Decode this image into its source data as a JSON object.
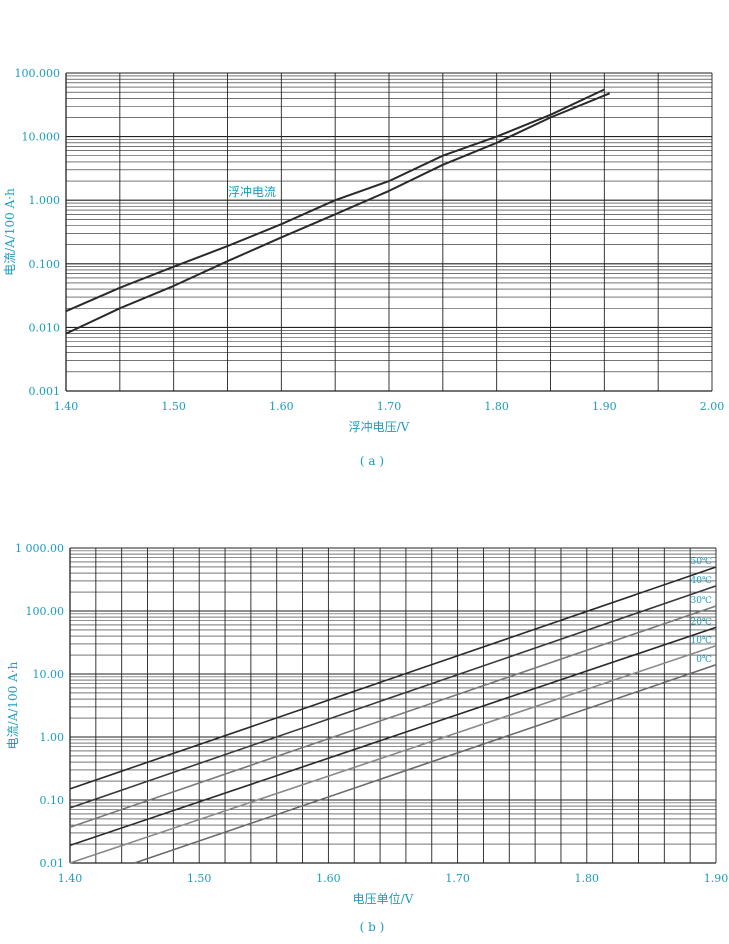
{
  "colors": {
    "text": "#1a9cc0",
    "grid": "#222222",
    "line": "#2b2b2b"
  },
  "chart_data": [
    {
      "type": "line",
      "caption": "( a )",
      "title": "",
      "xlabel": "浮冲电压/V",
      "ylabel": "电流/A/100 A·h",
      "xlim": [
        1.4,
        2.0
      ],
      "ylim": [
        0.001,
        100
      ],
      "yscale": "log",
      "grid": true,
      "xticks": [
        "1.40",
        "1.50",
        "1.60",
        "1.70",
        "1.80",
        "1.90",
        "2.00"
      ],
      "yticks": [
        "0.001",
        "0.010",
        "0.100",
        "1.000",
        "10.000",
        "100.000"
      ],
      "annotation": "浮冲电流",
      "series": [
        {
          "x": [
            1.4,
            1.45,
            1.5,
            1.55,
            1.6,
            1.65,
            1.7,
            1.75,
            1.8,
            1.85,
            1.9
          ],
          "y": [
            0.018,
            0.042,
            0.09,
            0.19,
            0.42,
            1.0,
            2.0,
            5.0,
            10.0,
            22.0,
            55.0
          ]
        },
        {
          "x": [
            1.4,
            1.45,
            1.5,
            1.55,
            1.6,
            1.65,
            1.7,
            1.75,
            1.8,
            1.85,
            1.905
          ],
          "y": [
            0.008,
            0.02,
            0.045,
            0.11,
            0.26,
            0.6,
            1.4,
            3.6,
            8.0,
            20.0,
            48.0
          ]
        }
      ]
    },
    {
      "type": "line",
      "caption": "( b )",
      "title": "",
      "xlabel": "电压单位/V",
      "ylabel": "电流/A/100 A·h",
      "xlim": [
        1.4,
        1.9
      ],
      "ylim": [
        0.01,
        1000
      ],
      "yscale": "log",
      "grid": true,
      "xticks": [
        "1.40",
        "1.50",
        "1.60",
        "1.70",
        "1.80",
        "1.90"
      ],
      "yticks": [
        "0.01",
        "0.10",
        "1.00",
        "10.00",
        "100.00",
        "1 000.00"
      ],
      "series": [
        {
          "name": "50℃",
          "x": [
            1.4,
            1.9
          ],
          "y": [
            0.15,
            500
          ]
        },
        {
          "name": "40℃",
          "x": [
            1.4,
            1.9
          ],
          "y": [
            0.075,
            250
          ]
        },
        {
          "name": "30℃",
          "x": [
            1.4,
            1.9
          ],
          "y": [
            0.037,
            120
          ]
        },
        {
          "name": "20℃",
          "x": [
            1.4,
            1.9
          ],
          "y": [
            0.019,
            55
          ]
        },
        {
          "name": "10℃",
          "x": [
            1.4,
            1.9
          ],
          "y": [
            0.01,
            28
          ]
        },
        {
          "name": "0℃",
          "x": [
            1.45,
            1.9
          ],
          "y": [
            0.01,
            14
          ]
        }
      ]
    }
  ]
}
